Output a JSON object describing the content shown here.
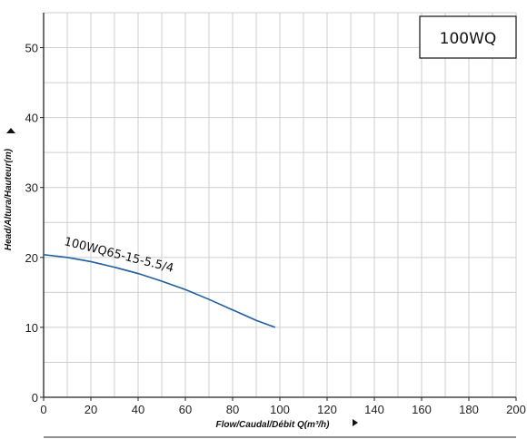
{
  "chart_data": {
    "type": "line",
    "model_label": "100WQ",
    "xlabel": "Flow/Caudal/Débit Q(m³/h)",
    "ylabel": "Head/Altura/Hauteur(m)",
    "xlim": [
      0,
      200
    ],
    "ylim": [
      0,
      55
    ],
    "x_ticks": [
      "0",
      "20",
      "40",
      "60",
      "80",
      "100",
      "120",
      "140",
      "160",
      "180",
      "200"
    ],
    "y_ticks": [
      "0",
      "10",
      "20",
      "30",
      "40",
      "50"
    ],
    "grid": true,
    "series": [
      {
        "name": "100WQ65-15-5.5/4",
        "color": "#1f5f9e",
        "x": [
          0,
          10,
          20,
          30,
          40,
          50,
          60,
          70,
          80,
          90,
          98
        ],
        "y": [
          20.4,
          20.0,
          19.4,
          18.6,
          17.7,
          16.6,
          15.4,
          14.0,
          12.5,
          11.0,
          10.0
        ]
      }
    ]
  }
}
